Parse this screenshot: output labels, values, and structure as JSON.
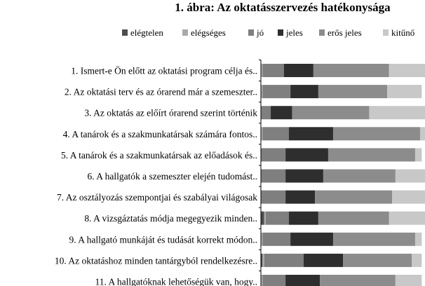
{
  "chart_data": {
    "type": "bar",
    "stacked": true,
    "percent_stacked": true,
    "orientation": "horizontal",
    "title": "1. ábra: Az oktatásszervezés hatékonysága",
    "legend_position": "top",
    "categories": [
      "1. Ismert-e Ön előtt az oktatási program célja és..",
      "2. Az oktatási terv és az órarend már a szemeszter..",
      "3. Az oktatás az előírt órarend szerint történik",
      "4. A tanárok és a szakmunkatársak számára fontos..",
      "5. A tanárok és a szakmunkatársak az előadások és..",
      "6. A hallgatók a szemeszter elején tudomást..",
      "7. Az osztályozás szempontjai és szabályai világosak",
      "8. A vizsgáztatás módja megegyezik minden..",
      "9. A hallgató munkáját és tudását korrekt módon..",
      "10. Az oktatáshoz minden tantárgyból rendelkezésre..",
      "11. A hallgatóknak lehetőségük van, hogy.."
    ],
    "series": [
      {
        "name": "elégtelen",
        "color": "#4d4d4d",
        "values": [
          0,
          0,
          0,
          0,
          0,
          0,
          0,
          2,
          0,
          1,
          0
        ]
      },
      {
        "name": "elégséges",
        "color": "#aaaaaa",
        "values": [
          1,
          1,
          0,
          1,
          0,
          0,
          0,
          1,
          1,
          1,
          1
        ]
      },
      {
        "name": "jó",
        "color": "#7f7f7f",
        "values": [
          13,
          17,
          6,
          16,
          15,
          15,
          15,
          14,
          17,
          24,
          14
        ]
      },
      {
        "name": "jeles",
        "color": "#2e2e2e",
        "values": [
          18,
          17,
          13,
          27,
          26,
          23,
          18,
          18,
          26,
          24,
          21
        ]
      },
      {
        "name": "erős jeles",
        "color": "#8c8c8c",
        "values": [
          46,
          42,
          47,
          53,
          53,
          44,
          47,
          43,
          50,
          42,
          46
        ]
      },
      {
        "name": "kitűnő",
        "color": "#c8c8c8",
        "values": [
          22,
          21,
          34,
          3,
          4,
          18,
          20,
          22,
          4,
          6,
          16
        ]
      }
    ],
    "xlim": [
      0,
      100
    ],
    "grid": false
  }
}
